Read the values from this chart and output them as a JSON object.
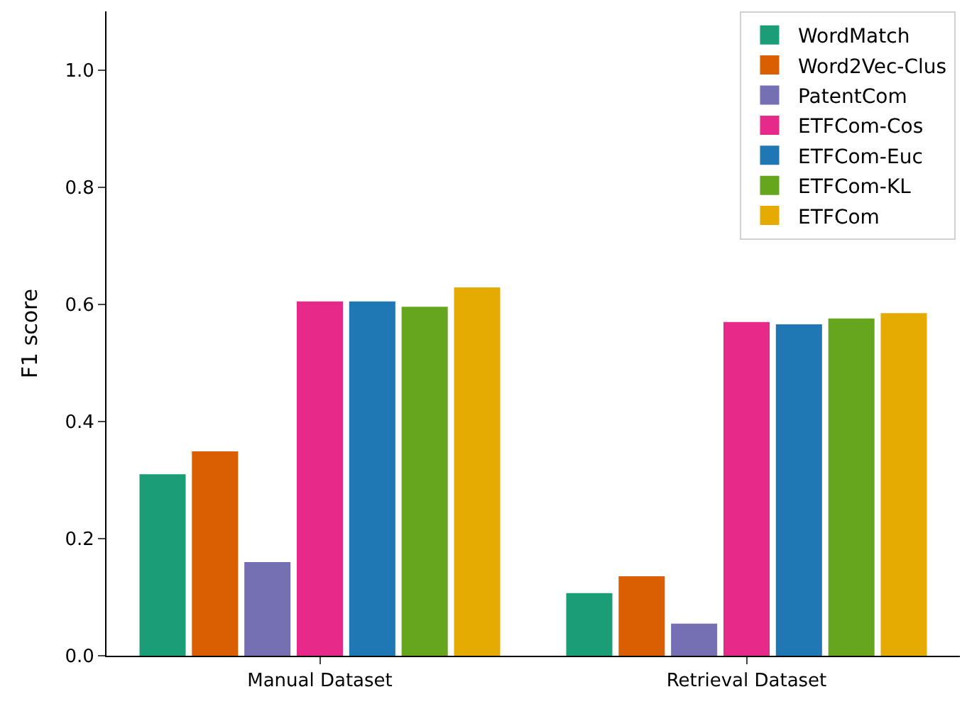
{
  "chart_data": {
    "type": "bar",
    "ylabel": "F1 score",
    "categories": [
      "Manual Dataset",
      "Retrieval Dataset"
    ],
    "series": [
      {
        "name": "WordMatch",
        "color": "#1b9e77",
        "values": [
          0.308,
          0.105
        ]
      },
      {
        "name": "Word2Vec-Clus",
        "color": "#d95f02",
        "values": [
          0.347,
          0.134
        ]
      },
      {
        "name": "PatentCom",
        "color": "#7570b3",
        "values": [
          0.158,
          0.053
        ]
      },
      {
        "name": "ETFCom-Cos",
        "color": "#e7298a",
        "values": [
          0.603,
          0.568
        ]
      },
      {
        "name": "ETFCom-Euc",
        "color": "#1f78b4",
        "values": [
          0.603,
          0.564
        ]
      },
      {
        "name": "ETFCom-KL",
        "color": "#66a61e",
        "values": [
          0.594,
          0.574
        ]
      },
      {
        "name": "ETFCom",
        "color": "#e6ab02",
        "values": [
          0.627,
          0.583
        ]
      }
    ],
    "ylim": [
      0,
      1.1
    ],
    "yticks": [
      {
        "value": 0,
        "label": "0.0"
      },
      {
        "value": 0.2,
        "label": "0.2"
      },
      {
        "value": 0.4,
        "label": "0.4"
      },
      {
        "value": 0.6,
        "label": "0.6"
      },
      {
        "value": 0.8,
        "label": "0.8"
      },
      {
        "value": 1.0,
        "label": "1.0"
      }
    ],
    "legend": "top right"
  }
}
